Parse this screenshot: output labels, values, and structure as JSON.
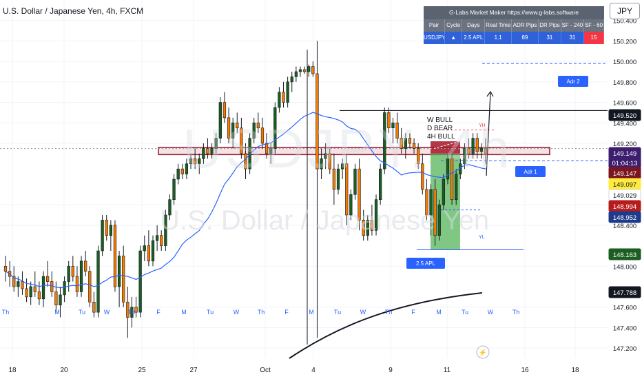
{
  "header": {
    "title": "U.S. Dollar / Japanese Yen, 4h, FXCM"
  },
  "symbol_button": {
    "label": "JPY"
  },
  "watermark": {
    "ticker": "USDJPY, 4h",
    "name": "U.S. Dollar / Japanese Yen"
  },
  "glabs": {
    "title": "G-Labs Market Maker https://www.g-labs.software",
    "headers": [
      "Pair",
      "Cycle",
      "Days",
      "Real Time",
      "ADR Pips",
      "DR Pips",
      "SF - 240",
      "SF - 60"
    ],
    "values": [
      "USDJPY",
      "▲",
      "2.5 APL",
      "1.1",
      "89",
      "31",
      "31",
      "15"
    ]
  },
  "annotations": {
    "w_bull": "W BULL",
    "d_bear": "D BEAR",
    "h4_bull": "4H BULL",
    "yh": "YH",
    "yl": "YL",
    "adr1": "Adr 1",
    "adr2": "Adr 2",
    "apl": "2.5 APL"
  },
  "chart_data": {
    "type": "candlestick",
    "ylim": [
      147.1,
      150.6
    ],
    "y_ticks": [
      "150.400",
      "150.200",
      "150.000",
      "149.800",
      "149.600",
      "149.400",
      "149.200",
      "148.600",
      "148.400",
      "148.000",
      "147.600",
      "147.400",
      "147.200"
    ],
    "price_labels": [
      {
        "value": "149.520",
        "color": "#131722",
        "text": "#ffffff"
      },
      {
        "value": "149.149",
        "color": "#3d1d6e",
        "text": "#ffffff"
      },
      {
        "value": "01:04:13",
        "color": "#3d1d6e",
        "text": "#ffffff"
      },
      {
        "value": "149.147",
        "color": "#7b1620",
        "text": "#ffffff"
      },
      {
        "value": "149.097",
        "color": "#ffeb3b",
        "text": "#131722"
      },
      {
        "value": "149.029",
        "color": "#ffffff",
        "text": "#131722"
      },
      {
        "value": "148.994",
        "color": "#b71c1c",
        "text": "#ffffff"
      },
      {
        "value": "148.952",
        "color": "#1e3a8a",
        "text": "#ffffff"
      },
      {
        "value": "148.163",
        "color": "#1b5e20",
        "text": "#ffffff"
      },
      {
        "value": "147.788",
        "color": "#131722",
        "text": "#ffffff"
      }
    ],
    "x_date_labels": [
      "18",
      "20",
      "25",
      "27",
      "Oct",
      "4",
      "9",
      "11",
      "16",
      "18"
    ],
    "x_day_labels": [
      "Th",
      "M",
      "Tu",
      "W",
      "Th",
      "F",
      "M",
      "Tu",
      "W",
      "Th",
      "F",
      "M",
      "Tu",
      "W",
      "Th",
      "F",
      "M",
      "Tu",
      "W",
      "Th"
    ],
    "levels": {
      "high_line": 149.52,
      "red_zone_top": 149.15,
      "red_zone_bottom": 149.1,
      "adr2": 149.98,
      "blue_dashed": 149.12,
      "low_line": 148.16
    },
    "candles": [
      [
        148.0,
        148.1,
        147.85,
        147.95
      ],
      [
        147.95,
        148.05,
        147.8,
        147.9
      ],
      [
        147.9,
        148.0,
        147.75,
        147.8
      ],
      [
        147.8,
        147.9,
        147.7,
        147.85
      ],
      [
        147.85,
        147.95,
        147.72,
        147.78
      ],
      [
        147.78,
        147.88,
        147.65,
        147.7
      ],
      [
        147.7,
        147.85,
        147.62,
        147.8
      ],
      [
        147.8,
        147.95,
        147.7,
        147.75
      ],
      [
        147.75,
        147.85,
        147.62,
        147.68
      ],
      [
        147.68,
        147.95,
        147.6,
        147.9
      ],
      [
        147.9,
        148.05,
        147.8,
        147.85
      ],
      [
        147.85,
        147.95,
        147.7,
        147.75
      ],
      [
        147.75,
        147.85,
        147.55,
        147.62
      ],
      [
        147.62,
        147.8,
        147.5,
        147.72
      ],
      [
        147.72,
        147.9,
        147.65,
        147.85
      ],
      [
        147.85,
        148.05,
        147.75,
        148.0
      ],
      [
        148.0,
        148.1,
        147.85,
        147.9
      ],
      [
        147.9,
        148.0,
        147.7,
        147.75
      ],
      [
        147.75,
        148.1,
        147.7,
        148.05
      ],
      [
        148.05,
        148.15,
        147.9,
        147.95
      ],
      [
        147.95,
        148.0,
        147.6,
        147.65
      ],
      [
        147.65,
        147.75,
        147.5,
        147.55
      ],
      [
        147.55,
        148.2,
        147.5,
        148.15
      ],
      [
        148.15,
        148.5,
        148.1,
        148.45
      ],
      [
        148.45,
        148.5,
        148.25,
        148.3
      ],
      [
        148.3,
        148.45,
        148.15,
        148.4
      ],
      [
        148.4,
        148.45,
        147.75,
        147.8
      ],
      [
        147.8,
        148.15,
        147.6,
        148.1
      ],
      [
        148.1,
        148.2,
        147.6,
        147.65
      ],
      [
        147.65,
        147.8,
        147.3,
        147.5
      ],
      [
        147.5,
        147.7,
        147.4,
        147.6
      ],
      [
        147.6,
        147.7,
        147.5,
        147.55
      ],
      [
        147.55,
        148.2,
        147.5,
        148.15
      ],
      [
        148.15,
        148.3,
        148.05,
        148.2
      ],
      [
        148.2,
        148.35,
        148.0,
        148.05
      ],
      [
        148.05,
        148.3,
        148.0,
        148.25
      ],
      [
        148.25,
        148.4,
        148.15,
        148.3
      ],
      [
        148.3,
        148.35,
        148.15,
        148.2
      ],
      [
        148.2,
        148.55,
        148.15,
        148.5
      ],
      [
        148.5,
        148.7,
        148.45,
        148.65
      ],
      [
        148.65,
        148.9,
        148.6,
        148.85
      ],
      [
        148.85,
        149.0,
        148.8,
        148.95
      ],
      [
        148.95,
        149.0,
        148.85,
        148.9
      ],
      [
        148.9,
        149.05,
        148.85,
        149.0
      ],
      [
        149.0,
        149.1,
        148.95,
        149.05
      ],
      [
        149.05,
        149.15,
        148.95,
        149.0
      ],
      [
        149.0,
        149.1,
        148.9,
        149.05
      ],
      [
        149.05,
        149.2,
        149.0,
        149.15
      ],
      [
        149.15,
        149.25,
        149.05,
        149.1
      ],
      [
        149.1,
        149.2,
        149.05,
        149.15
      ],
      [
        149.15,
        149.3,
        149.1,
        149.25
      ],
      [
        149.25,
        149.65,
        149.2,
        149.6
      ],
      [
        149.6,
        149.7,
        149.4,
        149.45
      ],
      [
        149.45,
        149.55,
        149.2,
        149.25
      ],
      [
        149.25,
        149.45,
        149.15,
        149.4
      ],
      [
        149.4,
        149.5,
        149.3,
        149.35
      ],
      [
        149.35,
        149.45,
        149.05,
        149.1
      ],
      [
        149.1,
        149.2,
        148.85,
        148.95
      ],
      [
        148.95,
        149.3,
        148.9,
        149.25
      ],
      [
        149.25,
        149.45,
        149.2,
        149.4
      ],
      [
        149.4,
        149.5,
        149.3,
        149.35
      ],
      [
        149.35,
        149.45,
        149.15,
        149.2
      ],
      [
        149.2,
        149.3,
        149.05,
        149.1
      ],
      [
        149.1,
        149.2,
        149.0,
        149.15
      ],
      [
        149.15,
        149.6,
        149.1,
        149.55
      ],
      [
        149.55,
        149.75,
        149.5,
        149.7
      ],
      [
        149.7,
        149.8,
        149.55,
        149.6
      ],
      [
        149.6,
        149.85,
        149.55,
        149.8
      ],
      [
        149.8,
        149.9,
        149.7,
        149.85
      ],
      [
        149.85,
        149.95,
        149.8,
        149.9
      ],
      [
        149.9,
        149.95,
        149.85,
        149.92
      ],
      [
        149.92,
        149.95,
        149.88,
        149.9
      ],
      [
        149.9,
        149.97,
        149.85,
        149.95
      ],
      [
        149.95,
        150.0,
        149.85,
        149.88
      ],
      [
        149.88,
        150.2,
        147.3,
        148.95
      ],
      [
        148.95,
        149.15,
        148.85,
        149.05
      ],
      [
        149.05,
        149.2,
        148.95,
        149.1
      ],
      [
        149.1,
        149.15,
        148.9,
        148.95
      ],
      [
        148.95,
        149.1,
        148.6,
        148.75
      ],
      [
        148.75,
        149.0,
        148.7,
        148.95
      ],
      [
        148.95,
        149.05,
        148.85,
        149.0
      ],
      [
        149.0,
        149.1,
        148.4,
        148.5
      ],
      [
        148.5,
        148.75,
        148.45,
        148.7
      ],
      [
        148.7,
        149.0,
        148.65,
        148.95
      ],
      [
        148.95,
        149.05,
        148.35,
        148.45
      ],
      [
        148.45,
        148.55,
        148.25,
        148.3
      ],
      [
        148.3,
        148.5,
        148.25,
        148.45
      ],
      [
        148.45,
        148.6,
        148.3,
        148.35
      ],
      [
        148.35,
        148.7,
        148.3,
        148.65
      ],
      [
        148.65,
        149.0,
        148.6,
        148.95
      ],
      [
        148.95,
        149.55,
        148.9,
        149.5
      ],
      [
        149.5,
        149.55,
        149.3,
        149.35
      ],
      [
        149.35,
        149.45,
        149.2,
        149.4
      ],
      [
        149.4,
        149.5,
        149.2,
        149.25
      ],
      [
        149.25,
        149.35,
        149.1,
        149.15
      ],
      [
        149.15,
        149.3,
        149.05,
        149.25
      ],
      [
        149.25,
        149.3,
        149.15,
        149.2
      ],
      [
        149.2,
        149.25,
        149.1,
        149.15
      ],
      [
        149.15,
        149.2,
        148.95,
        149.0
      ],
      [
        149.0,
        149.1,
        148.7,
        148.75
      ],
      [
        148.75,
        148.85,
        148.45,
        148.5
      ],
      [
        148.5,
        148.8,
        148.3,
        148.75
      ],
      [
        148.75,
        148.85,
        148.2,
        148.3
      ],
      [
        148.3,
        148.65,
        148.25,
        148.6
      ],
      [
        148.6,
        148.9,
        148.55,
        148.85
      ],
      [
        148.85,
        149.1,
        148.8,
        149.05
      ],
      [
        149.05,
        149.1,
        148.6,
        148.65
      ],
      [
        148.65,
        148.95,
        148.6,
        148.9
      ],
      [
        148.9,
        149.05,
        148.85,
        149.0
      ],
      [
        149.0,
        149.2,
        148.95,
        149.15
      ],
      [
        149.15,
        149.25,
        149.05,
        149.1
      ],
      [
        149.1,
        149.3,
        149.05,
        149.25
      ],
      [
        149.25,
        149.3,
        149.05,
        149.12
      ],
      [
        149.12,
        149.2,
        149.05,
        149.15
      ],
      [
        149.15,
        149.25,
        149.0,
        149.1
      ]
    ]
  }
}
